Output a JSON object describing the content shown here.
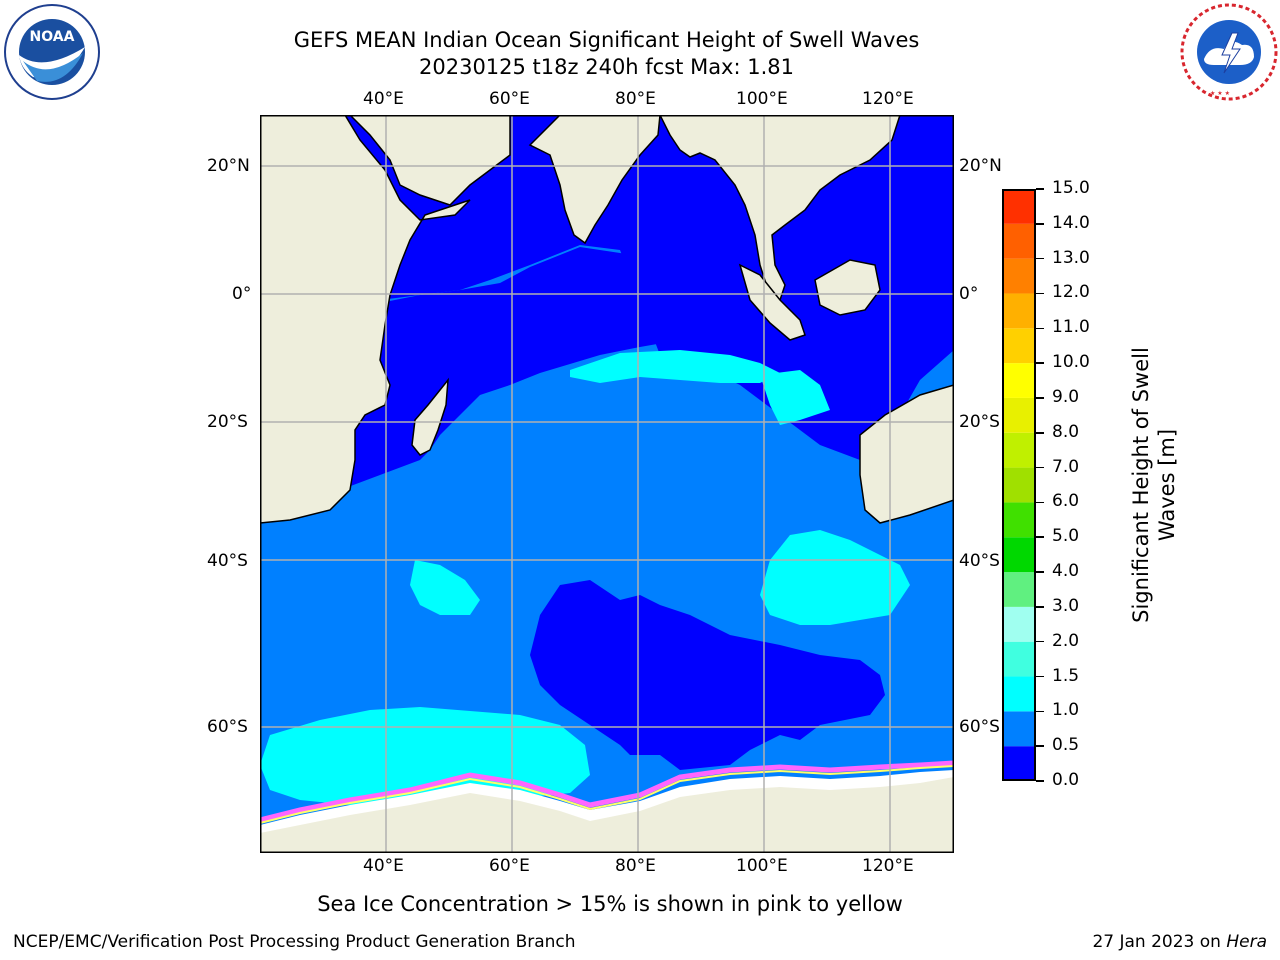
{
  "header": {
    "title_line1": "GEFS MEAN Indian Ocean Significant Height of Swell Waves",
    "title_line2": "20230125 t18z 240h fcst   Max: 1.81"
  },
  "logos": {
    "noaa_text": "NOAA",
    "noaa_ring_text": "NATIONAL OCEANIC AND ATMOSPHERIC ADMINISTRATION · U.S. DEPARTMENT OF COMMERCE",
    "nws_ring_text": "NATIONAL WEATHER SERVICE"
  },
  "map": {
    "top_lon_labels": [
      "40°E",
      "60°E",
      "80°E",
      "100°E",
      "120°E"
    ],
    "bottom_lon_labels": [
      "40°E",
      "60°E",
      "80°E",
      "100°E",
      "120°E"
    ],
    "left_lat_labels": [
      "20°N",
      "0°",
      "20°S",
      "40°S",
      "60°S"
    ],
    "right_lat_labels": [
      "20°N",
      "0°",
      "20°S",
      "40°S",
      "60°S"
    ],
    "colors": {
      "land": "#eeeedc",
      "ice_sheet": "#ffffff",
      "ocean_0_0_5": "#0000ff",
      "ocean_0_5_1_0": "#0080ff",
      "ocean_1_0_1_5": "#00ffff",
      "sea_ice_pink": "#ff66ff",
      "sea_ice_yellow": "#ffff66",
      "grid": "#b0b0b0"
    }
  },
  "colorbar": {
    "title_line1": "Significant Height of Swell",
    "title_line2": "Waves [m]",
    "tick_labels": [
      "0.0",
      "0.5",
      "1.0",
      "1.5",
      "2.0",
      "3.0",
      "4.0",
      "5.0",
      "6.0",
      "7.0",
      "8.0",
      "9.0",
      "10.0",
      "11.0",
      "12.0",
      "13.0",
      "14.0",
      "15.0"
    ],
    "colors": [
      "#0000ff",
      "#0080ff",
      "#00ffff",
      "#40ffe0",
      "#a0fff0",
      "#60f080",
      "#00d800",
      "#40e000",
      "#a0e000",
      "#c0f000",
      "#e8f000",
      "#ffff00",
      "#ffd000",
      "#ffb000",
      "#ff8000",
      "#ff6000",
      "#ff3000"
    ]
  },
  "chart_data": {
    "type": "heatmap",
    "title": "GEFS MEAN Indian Ocean Significant Height of Swell Waves",
    "subtitle": "20230125 t18z 240h fcst   Max: 1.81",
    "variable": "Significant Height of Swell Waves [m]",
    "max_value": 1.81,
    "lon_range": [
      20,
      130
    ],
    "lat_range": [
      -72,
      27
    ],
    "color_levels": [
      0.0,
      0.5,
      1.0,
      1.5,
      2.0,
      3.0,
      4.0,
      5.0,
      6.0,
      7.0,
      8.0,
      9.0,
      10.0,
      11.0,
      12.0,
      13.0,
      14.0,
      15.0
    ]
  },
  "caption": "Sea Ice Concentration > 15% is shown in pink to yellow",
  "footer": {
    "left": "NCEP/EMC/Verification Post Processing Product Generation Branch",
    "right_date": "27 Jan 2023 on ",
    "right_host": "Hera"
  }
}
